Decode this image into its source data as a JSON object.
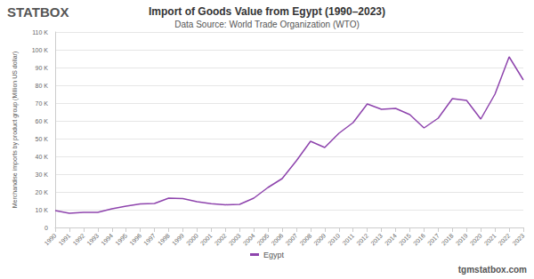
{
  "chart_data": {
    "type": "line",
    "title": "Import of Goods Value from Egypt (1990–2023)",
    "subtitle": "Data Source: World Trade Organization (WTO)",
    "y_label": "Merchandise imports by product group (Million US dollar)",
    "annotations": [
      "STATBOX",
      "tgmstatbox.com"
    ],
    "categories": [
      "1990",
      "1991",
      "1992",
      "1993",
      "1994",
      "1995",
      "1996",
      "1997",
      "1998",
      "1999",
      "2000",
      "2001",
      "2002",
      "2003",
      "2004",
      "2005",
      "2006",
      "2007",
      "2008",
      "2009",
      "2010",
      "2011",
      "2012",
      "2013",
      "2014",
      "2015",
      "2016",
      "2017",
      "2018",
      "2019",
      "2020",
      "2021",
      "2022",
      "2023"
    ],
    "series": [
      {
        "name": "Egypt",
        "color": "#8e44ad",
        "values": [
          9500,
          8000,
          8500,
          8500,
          10500,
          12000,
          13300,
          13500,
          16500,
          16300,
          14500,
          13400,
          12800,
          13000,
          16500,
          22500,
          27500,
          37500,
          48500,
          45000,
          53000,
          59000,
          69500,
          66500,
          67000,
          63500,
          56000,
          61500,
          72500,
          71500,
          61000,
          75000,
          96000,
          83000
        ]
      }
    ],
    "ylim": [
      0,
      110000
    ],
    "yticks": [
      0,
      {
        "value": 10000,
        "label": "10 K"
      },
      {
        "value": 20000,
        "label": "20 K"
      },
      {
        "value": 30000,
        "label": "30 K"
      },
      {
        "value": 40000,
        "label": "40 K"
      },
      {
        "value": 50000,
        "label": "50 K"
      },
      {
        "value": 60000,
        "label": "60 K"
      },
      {
        "value": 70000,
        "label": "70 K"
      },
      {
        "value": 80000,
        "label": "80 K"
      },
      {
        "value": 90000,
        "label": "90 K"
      },
      {
        "value": 100000,
        "label": "100 K"
      },
      {
        "value": 110000,
        "label": "110 K"
      }
    ],
    "grid": true,
    "legend": "bottom"
  }
}
